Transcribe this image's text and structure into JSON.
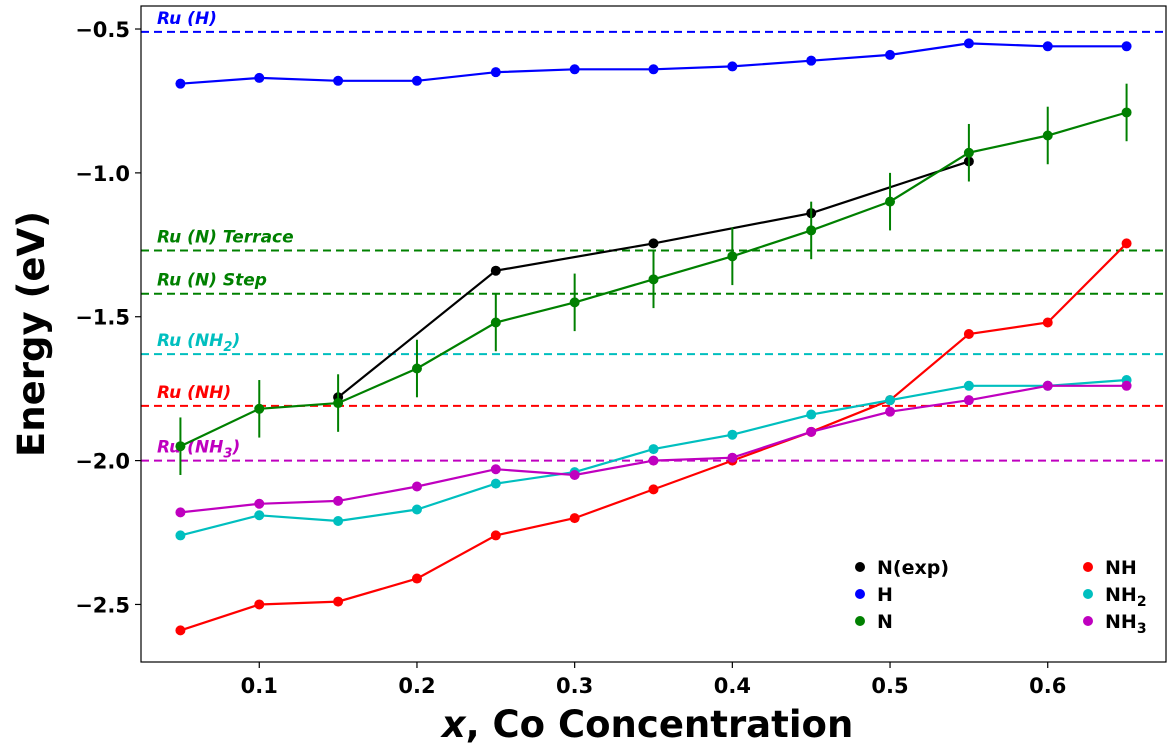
{
  "chart_data": {
    "type": "line",
    "xlabel_var": "x",
    "xlabel_rest": ", Co Concentration",
    "ylabel": "Energy (eV)",
    "xlim": [
      0.025,
      0.675
    ],
    "ylim": [
      -2.7,
      -0.42
    ],
    "xticks": [
      {
        "value": 0.1,
        "label": "0.1"
      },
      {
        "value": 0.2,
        "label": "0.2"
      },
      {
        "value": 0.3,
        "label": "0.3"
      },
      {
        "value": 0.4,
        "label": "0.4"
      },
      {
        "value": 0.5,
        "label": "0.5"
      },
      {
        "value": 0.6,
        "label": "0.6"
      }
    ],
    "yticks": [
      {
        "value": -0.5,
        "label": "−0.5"
      },
      {
        "value": -1.0,
        "label": "−1.0"
      },
      {
        "value": -1.5,
        "label": "−1.5"
      },
      {
        "value": -2.0,
        "label": "−2.0"
      },
      {
        "value": -2.5,
        "label": "−2.5"
      }
    ],
    "grid": false,
    "legend_position": "lower-right",
    "reference_lines": [
      {
        "key": "h",
        "label": "Ru (H)",
        "y": -0.51,
        "color": "#0000ff"
      },
      {
        "key": "n-terrace",
        "label": "Ru (N) Terrace",
        "y": -1.27,
        "color": "#008000"
      },
      {
        "key": "n-step",
        "label": "Ru (N) Step",
        "y": -1.42,
        "color": "#008000"
      },
      {
        "key": "nh2",
        "label": "Ru (NH",
        "sub": "2",
        "tail": ")",
        "y": -1.63,
        "color": "#00bfbf"
      },
      {
        "key": "nh",
        "label": "Ru (NH)",
        "y": -1.81,
        "color": "#ff0000"
      },
      {
        "key": "nh3",
        "label": "Ru (NH",
        "sub": "3",
        "tail": ")",
        "y": -2.0,
        "color": "#bf00bf"
      }
    ],
    "series": [
      {
        "key": "n-exp",
        "name": "N(exp)",
        "color": "#000000",
        "x": [
          0.15,
          0.25,
          0.35,
          0.45,
          0.55
        ],
        "y": [
          -1.78,
          -1.34,
          -1.245,
          -1.14,
          -0.96
        ]
      },
      {
        "key": "h",
        "name": "H",
        "color": "#0000ff",
        "x": [
          0.05,
          0.1,
          0.15,
          0.2,
          0.25,
          0.3,
          0.35,
          0.4,
          0.45,
          0.5,
          0.55,
          0.6,
          0.65
        ],
        "y": [
          -0.69,
          -0.67,
          -0.68,
          -0.68,
          -0.65,
          -0.64,
          -0.64,
          -0.63,
          -0.61,
          -0.59,
          -0.55,
          -0.56,
          -0.56
        ]
      },
      {
        "key": "n",
        "name": "N",
        "color": "#008000",
        "x": [
          0.05,
          0.1,
          0.15,
          0.2,
          0.25,
          0.3,
          0.35,
          0.4,
          0.45,
          0.5,
          0.55,
          0.6,
          0.65
        ],
        "y": [
          -1.95,
          -1.82,
          -1.8,
          -1.68,
          -1.52,
          -1.45,
          -1.37,
          -1.29,
          -1.2,
          -1.1,
          -0.93,
          -0.87,
          -0.79
        ],
        "err": [
          0.1,
          0.1,
          0.1,
          0.1,
          0.1,
          0.1,
          0.1,
          0.1,
          0.1,
          0.1,
          0.1,
          0.1,
          0.1
        ]
      },
      {
        "key": "nh",
        "name": "NH",
        "color": "#ff0000",
        "x": [
          0.05,
          0.1,
          0.15,
          0.2,
          0.25,
          0.3,
          0.35,
          0.4,
          0.45,
          0.5,
          0.55,
          0.6,
          0.65
        ],
        "y": [
          -2.59,
          -2.5,
          -2.49,
          -2.41,
          -2.26,
          -2.2,
          -2.1,
          -2.0,
          -1.9,
          -1.79,
          -1.56,
          -1.52,
          -1.245
        ]
      },
      {
        "key": "nh2",
        "name": "NH",
        "sub": "2",
        "color": "#00bfbf",
        "x": [
          0.05,
          0.1,
          0.15,
          0.2,
          0.25,
          0.3,
          0.35,
          0.4,
          0.45,
          0.5,
          0.55,
          0.6,
          0.65
        ],
        "y": [
          -2.26,
          -2.19,
          -2.21,
          -2.17,
          -2.08,
          -2.04,
          -1.96,
          -1.91,
          -1.84,
          -1.79,
          -1.74,
          -1.74,
          -1.72
        ]
      },
      {
        "key": "nh3",
        "name": "NH",
        "sub": "3",
        "color": "#bf00bf",
        "x": [
          0.05,
          0.1,
          0.15,
          0.2,
          0.25,
          0.3,
          0.35,
          0.4,
          0.45,
          0.5,
          0.55,
          0.6,
          0.65
        ],
        "y": [
          -2.18,
          -2.15,
          -2.14,
          -2.09,
          -2.03,
          -2.05,
          -2.0,
          -1.99,
          -1.9,
          -1.83,
          -1.79,
          -1.74,
          -1.74
        ]
      }
    ]
  }
}
